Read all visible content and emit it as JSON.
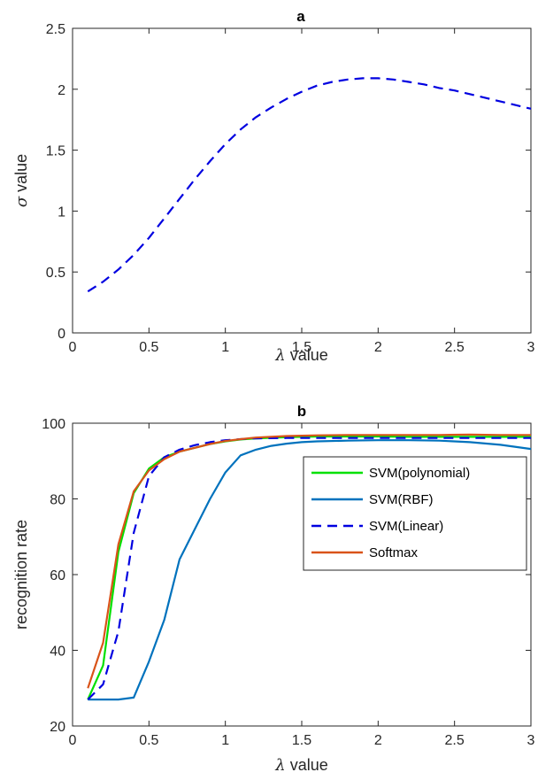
{
  "chart_data": [
    {
      "type": "line",
      "title": "a",
      "xlabel_symbol": "λ",
      "xlabel_text": " value",
      "ylabel_symbol": "σ",
      "ylabel_text": " value",
      "xlim": [
        0,
        3
      ],
      "ylim": [
        0,
        2.5
      ],
      "xticks": [
        "0",
        "0.5",
        "1",
        "1.5",
        "2",
        "2.5",
        "3"
      ],
      "yticks": [
        "0",
        "0.5",
        "1",
        "1.5",
        "2",
        "2.5"
      ],
      "grid": false,
      "series": [
        {
          "color": "#0000e0",
          "dash": true,
          "x": [
            0.1,
            0.2,
            0.3,
            0.4,
            0.5,
            0.6,
            0.7,
            0.8,
            0.9,
            1.0,
            1.1,
            1.2,
            1.3,
            1.4,
            1.5,
            1.6,
            1.7,
            1.8,
            1.9,
            2.0,
            2.1,
            2.2,
            2.3,
            2.4,
            2.5,
            2.6,
            2.7,
            2.8,
            2.9,
            3.0
          ],
          "y": [
            0.34,
            0.42,
            0.52,
            0.64,
            0.78,
            0.94,
            1.1,
            1.26,
            1.41,
            1.55,
            1.67,
            1.77,
            1.85,
            1.92,
            1.98,
            2.03,
            2.06,
            2.08,
            2.09,
            2.09,
            2.08,
            2.06,
            2.04,
            2.01,
            1.99,
            1.96,
            1.93,
            1.9,
            1.87,
            1.84
          ]
        }
      ]
    },
    {
      "type": "line",
      "title": "b",
      "xlabel_symbol": "λ",
      "xlabel_text": " value",
      "ylabel": "recognition rate",
      "xlim": [
        0,
        3
      ],
      "ylim": [
        20,
        100
      ],
      "xticks": [
        "0",
        "0.5",
        "1",
        "1.5",
        "2",
        "2.5",
        "3"
      ],
      "yticks": [
        "20",
        "40",
        "60",
        "80",
        "100"
      ],
      "grid": false,
      "legend": "upper-right",
      "series": [
        {
          "name": "SVM(polynomial)",
          "color": "#00e000",
          "dash": false,
          "x": [
            0.1,
            0.2,
            0.3,
            0.4,
            0.5,
            0.6,
            0.7,
            0.8,
            0.9,
            1.0,
            1.1,
            1.2,
            1.4,
            1.6,
            1.8,
            2.0,
            2.2,
            2.4,
            2.6,
            2.8,
            3.0
          ],
          "y": [
            27,
            36,
            66,
            81.5,
            88,
            91,
            92.5,
            93.5,
            94.5,
            95.2,
            95.7,
            96,
            96.3,
            96.5,
            96.5,
            96.5,
            96.4,
            96.4,
            96.4,
            96.4,
            96.4
          ]
        },
        {
          "name": "SVM(RBF)",
          "color": "#0072bd",
          "dash": false,
          "x": [
            0.1,
            0.2,
            0.3,
            0.4,
            0.5,
            0.6,
            0.7,
            0.8,
            0.9,
            1.0,
            1.1,
            1.2,
            1.3,
            1.4,
            1.5,
            1.6,
            1.8,
            2.0,
            2.2,
            2.4,
            2.6,
            2.8,
            3.0
          ],
          "y": [
            27,
            27,
            27,
            27.5,
            37,
            48,
            64,
            72,
            80,
            87,
            91.5,
            93,
            94,
            94.6,
            95,
            95.2,
            95.4,
            95.5,
            95.5,
            95.4,
            95,
            94.3,
            93.2
          ]
        },
        {
          "name": "SVM(Linear)",
          "color": "#0000e0",
          "dash": true,
          "x": [
            0.1,
            0.2,
            0.3,
            0.4,
            0.5,
            0.6,
            0.7,
            0.8,
            0.9,
            1.0,
            1.1,
            1.2,
            1.4,
            1.6,
            1.8,
            2.0,
            2.2,
            2.4,
            2.6,
            2.8,
            3.0
          ],
          "y": [
            27,
            31,
            45,
            71,
            86,
            91,
            93,
            94.2,
            95,
            95.5,
            95.8,
            96,
            96.1,
            96.1,
            96.1,
            96.1,
            96.1,
            96.1,
            96.1,
            96.1,
            96.1
          ]
        },
        {
          "name": "Softmax",
          "color": "#d95319",
          "dash": false,
          "x": [
            0.1,
            0.2,
            0.3,
            0.4,
            0.5,
            0.6,
            0.7,
            0.8,
            0.9,
            1.0,
            1.1,
            1.2,
            1.4,
            1.6,
            1.8,
            2.0,
            2.2,
            2.4,
            2.6,
            2.8,
            3.0
          ],
          "y": [
            30,
            42,
            68,
            82,
            87.5,
            90.5,
            92.5,
            93.5,
            94.5,
            95.3,
            95.8,
            96.2,
            96.6,
            96.8,
            96.9,
            96.9,
            96.9,
            96.9,
            97,
            96.9,
            96.9
          ]
        }
      ]
    }
  ]
}
